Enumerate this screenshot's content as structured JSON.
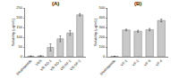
{
  "chart_data": [
    {
      "type": "bar",
      "title": "(A)",
      "y_label": "Solubility (μg/mL)",
      "categories": [
        "Bicalutamide",
        "VBS",
        "VR-SD-1",
        "VR-SD-2",
        "VR-SF-1",
        "VR-SF-2"
      ],
      "values": [
        3,
        4,
        48,
        92,
        122,
        215
      ],
      "errors": [
        1,
        1,
        18,
        15,
        12,
        6
      ],
      "color": "#c8c8c8",
      "ylim": [
        0,
        250
      ],
      "yticks": [
        0,
        50,
        100,
        150,
        200,
        250
      ],
      "grid": false
    },
    {
      "type": "bar",
      "title": "(B)",
      "y_label": "Solubility (μg/mL)",
      "categories": [
        "Bicalutamide",
        "VF-1",
        "VF-2",
        "VF-3",
        "VF-4"
      ],
      "values": [
        4,
        275,
        262,
        278,
        372
      ],
      "errors": [
        1,
        8,
        10,
        12,
        14
      ],
      "color": "#c8c8c8",
      "ylim": [
        0,
        500
      ],
      "yticks": [
        0,
        100,
        200,
        300,
        400,
        500
      ],
      "grid": false
    }
  ]
}
